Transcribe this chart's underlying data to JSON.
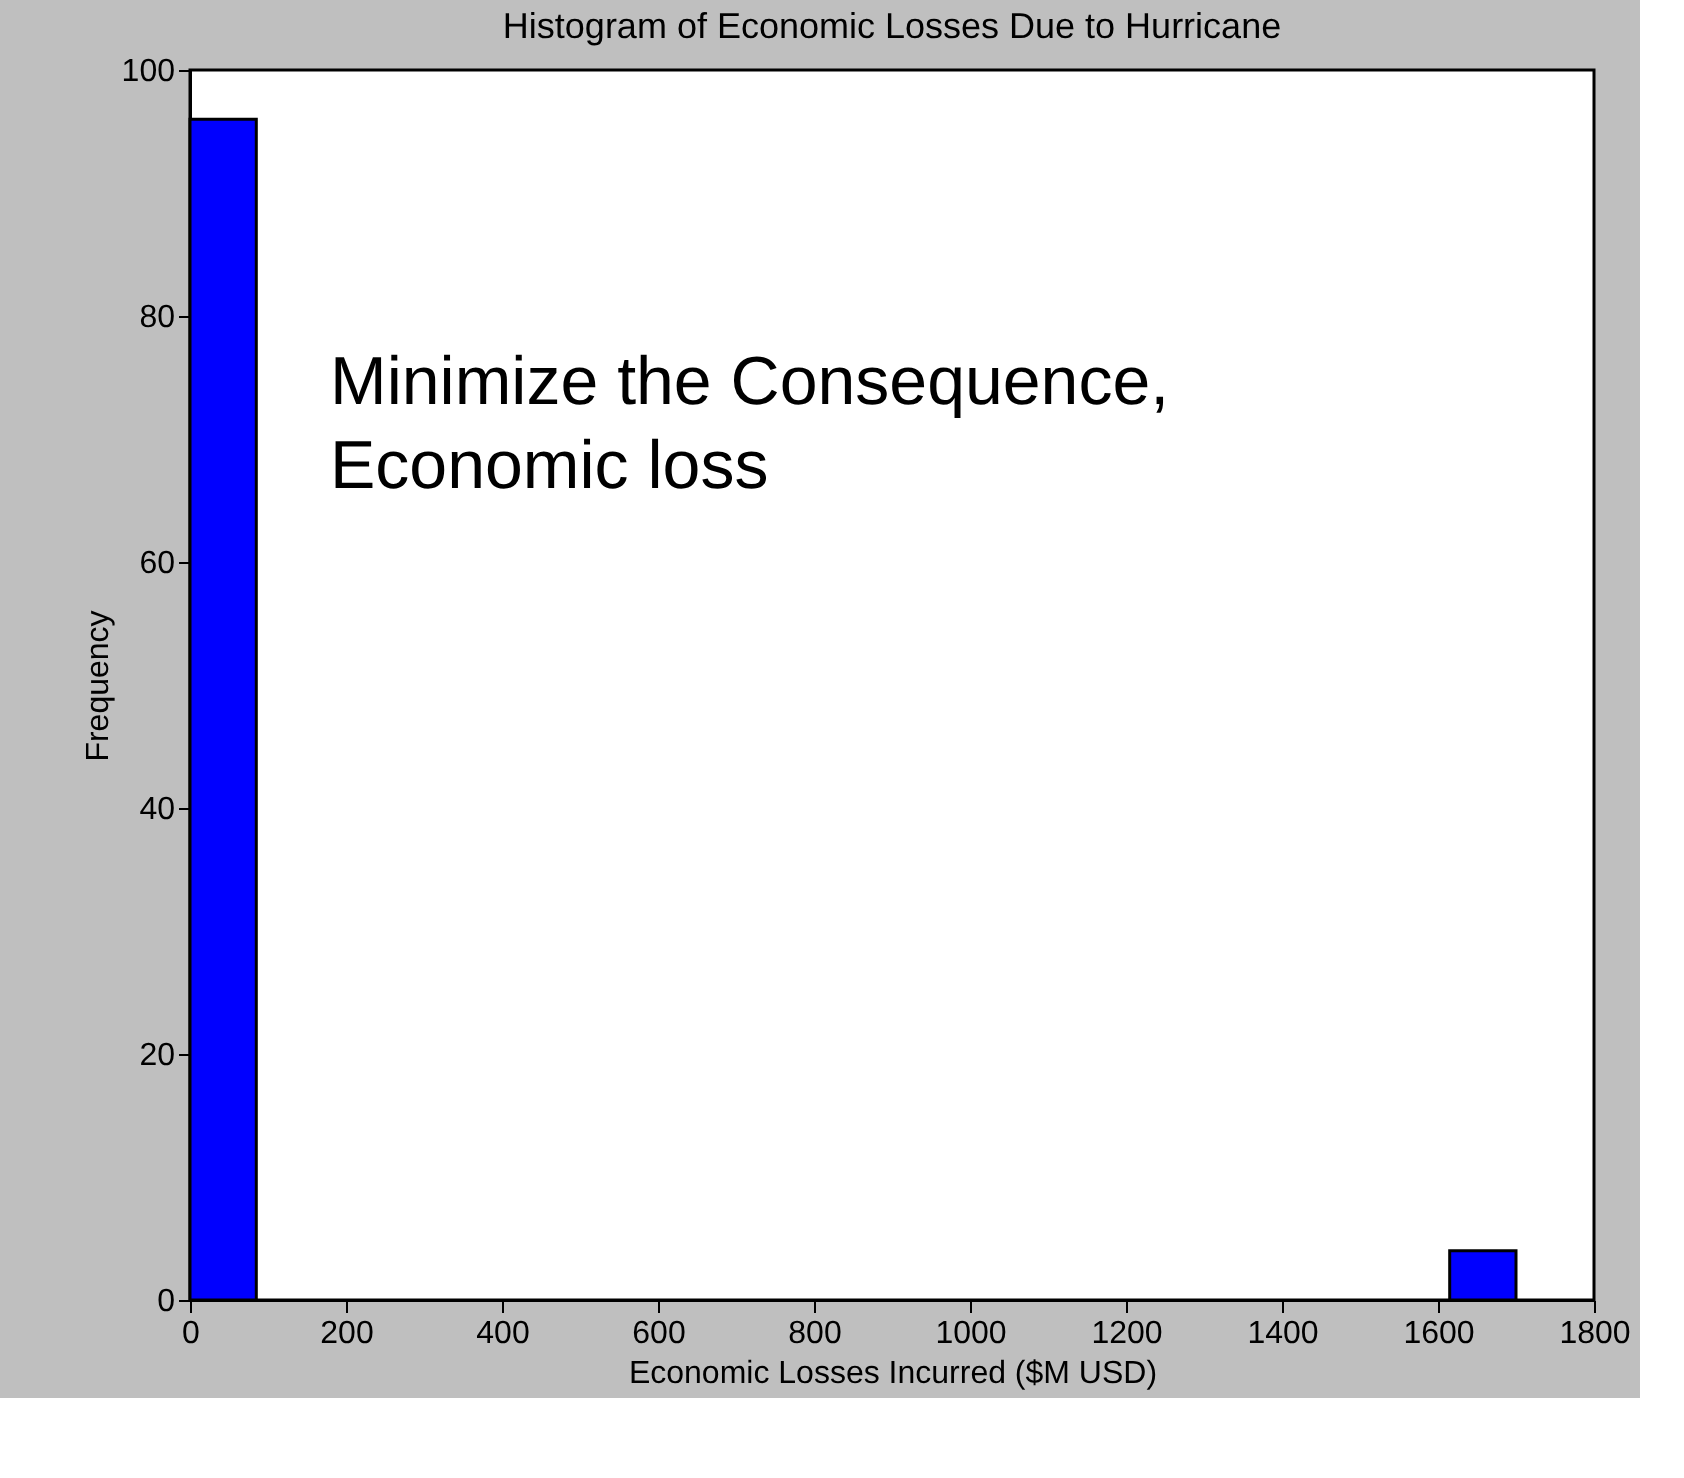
{
  "chart_data": {
    "type": "histogram",
    "title": "Histogram of Economic Losses Due to Hurricane",
    "xlabel": "Economic Losses Incurred ($M USD)",
    "ylabel": "Frequency",
    "bins": [
      0,
      85,
      170,
      255,
      340,
      425,
      510,
      595,
      680,
      765,
      850,
      935,
      1020,
      1105,
      1190,
      1275,
      1360,
      1445,
      1530,
      1615,
      1700
    ],
    "values": [
      96,
      0,
      0,
      0,
      0,
      0,
      0,
      0,
      0,
      0,
      0,
      0,
      0,
      0,
      0,
      0,
      0,
      0,
      0,
      4
    ],
    "color": "#0000ff",
    "xlim": [
      0,
      1800
    ],
    "xticks": [
      0,
      200,
      400,
      600,
      800,
      1000,
      1200,
      1400,
      1600,
      1800
    ],
    "ylim": [
      0,
      100
    ],
    "yticks": [
      0,
      20,
      40,
      60,
      80,
      100
    ],
    "grid": false,
    "annotations": [
      "Minimize the Consequence,\nEconomic loss"
    ]
  }
}
